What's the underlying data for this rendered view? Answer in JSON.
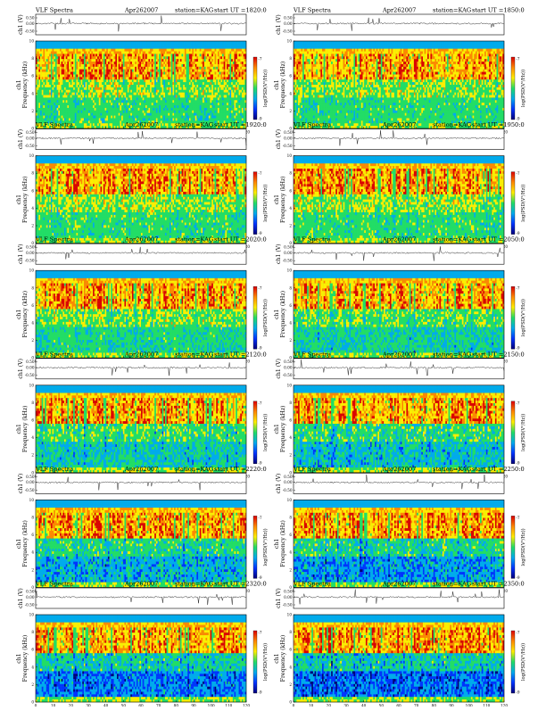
{
  "chart_data": {
    "type": "heatmap",
    "title_left": "VLF Spectra",
    "date": "Apr262007",
    "station": "station=KAG",
    "start_prefix": "start  UT  =",
    "xlabel": "Time  (sec)",
    "ylabel_channel": "ch1",
    "ylabel_freq": "Frequency  (kHz)",
    "trace_ylabel": "ch1 (V)",
    "colorbar_label": "log(PSD(V²/Hz))",
    "xlim": [
      0,
      120
    ],
    "ylim": [
      0,
      10
    ],
    "x_ticks": [
      "0",
      "10",
      "20",
      "30",
      "40",
      "50",
      "60",
      "70",
      "80",
      "90",
      "100",
      "110",
      "120"
    ],
    "y_ticks": [
      "0",
      "2",
      "4",
      "6",
      "8",
      "10"
    ],
    "trace_ticks": [
      "0.50",
      "0.00",
      "-0.50"
    ],
    "colorbar_ticks": [
      "-7",
      "-9"
    ],
    "colorscale": [
      "#00007a",
      "#0033ff",
      "#00aaee",
      "#22dd66",
      "#ffee00",
      "#ff8800",
      "#dd0000"
    ],
    "panels": [
      {
        "start": "1820:0"
      },
      {
        "start": "1850:0"
      },
      {
        "start": "1920:0"
      },
      {
        "start": "1950:0"
      },
      {
        "start": "2020:0"
      },
      {
        "start": "2050:0"
      },
      {
        "start": "2120:0"
      },
      {
        "start": "2150:0"
      },
      {
        "start": "2220:0"
      },
      {
        "start": "2250:0"
      },
      {
        "start": "2320:0"
      },
      {
        "start": "2350:0"
      }
    ]
  }
}
